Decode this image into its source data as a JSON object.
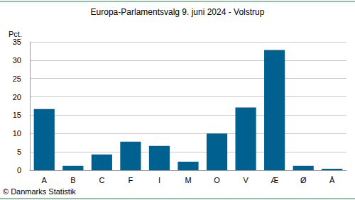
{
  "chart_data": {
    "type": "bar",
    "title": "Europa-Parlamentsvalg 9. juni 2024 - Volstrup",
    "y_label": "Pct.",
    "source": "© Danmarks Statistik",
    "categories": [
      "A",
      "B",
      "C",
      "F",
      "I",
      "M",
      "O",
      "V",
      "Æ",
      "Ø",
      "Å"
    ],
    "values": [
      16.7,
      1.2,
      4.3,
      7.8,
      6.6,
      2.3,
      10.0,
      17.1,
      32.8,
      1.2,
      0.4
    ],
    "color": "#00608f",
    "ylim": [
      0,
      35
    ],
    "yticks": [
      0,
      5,
      10,
      15,
      20,
      25,
      30,
      35
    ],
    "grid": true
  }
}
